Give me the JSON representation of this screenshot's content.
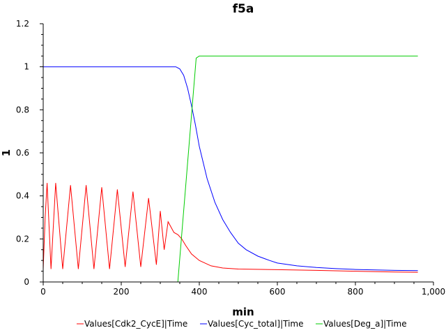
{
  "chart_data": {
    "type": "line",
    "title": "f5a",
    "xlabel": "min",
    "ylabel": "1",
    "xlim": [
      0,
      1000
    ],
    "ylim": [
      0,
      1.2
    ],
    "xticks": [
      0,
      200,
      400,
      600,
      800,
      1000
    ],
    "xtick_labels": [
      "0",
      "200",
      "400",
      "600",
      "800",
      "1,000"
    ],
    "yticks": [
      0,
      0.2,
      0.4,
      0.6,
      0.8,
      1,
      1.2
    ],
    "ytick_labels": [
      "0",
      "0.2",
      "0.4",
      "0.6",
      "0.8",
      "1",
      "1.2"
    ],
    "grid": false,
    "legend_position": "bottom",
    "series": [
      {
        "name": "Values[Cdk2_CycE]|Time",
        "color": "#ff0000",
        "x": [
          0,
          5,
          10,
          20,
          32,
          50,
          70,
          90,
          110,
          130,
          150,
          170,
          190,
          210,
          230,
          250,
          270,
          290,
          300,
          310,
          320,
          335,
          345,
          355,
          365,
          380,
          400,
          430,
          460,
          500,
          600,
          700,
          800,
          900,
          960
        ],
        "y": [
          0.06,
          0.3,
          0.46,
          0.06,
          0.46,
          0.06,
          0.45,
          0.06,
          0.45,
          0.06,
          0.44,
          0.06,
          0.43,
          0.07,
          0.42,
          0.07,
          0.39,
          0.08,
          0.33,
          0.15,
          0.28,
          0.23,
          0.22,
          0.2,
          0.17,
          0.13,
          0.1,
          0.075,
          0.065,
          0.06,
          0.057,
          0.054,
          0.05,
          0.046,
          0.045
        ]
      },
      {
        "name": "Values[Cyc_total]|Time",
        "color": "#0000ff",
        "x": [
          0,
          200,
          340,
          350,
          360,
          370,
          380,
          390,
          400,
          420,
          440,
          460,
          480,
          500,
          520,
          550,
          580,
          600,
          650,
          700,
          750,
          800,
          850,
          900,
          960
        ],
        "y": [
          1.0,
          1.0,
          1.0,
          0.99,
          0.96,
          0.9,
          0.82,
          0.73,
          0.63,
          0.48,
          0.37,
          0.29,
          0.23,
          0.18,
          0.15,
          0.12,
          0.1,
          0.088,
          0.075,
          0.067,
          0.062,
          0.058,
          0.056,
          0.054,
          0.053
        ]
      },
      {
        "name": "Values[Deg_a]|Time",
        "color": "#00cc00",
        "x": [
          0,
          345,
          392,
          400,
          600,
          800,
          960
        ],
        "y": [
          0,
          0,
          1.04,
          1.05,
          1.05,
          1.05,
          1.05
        ]
      }
    ]
  }
}
